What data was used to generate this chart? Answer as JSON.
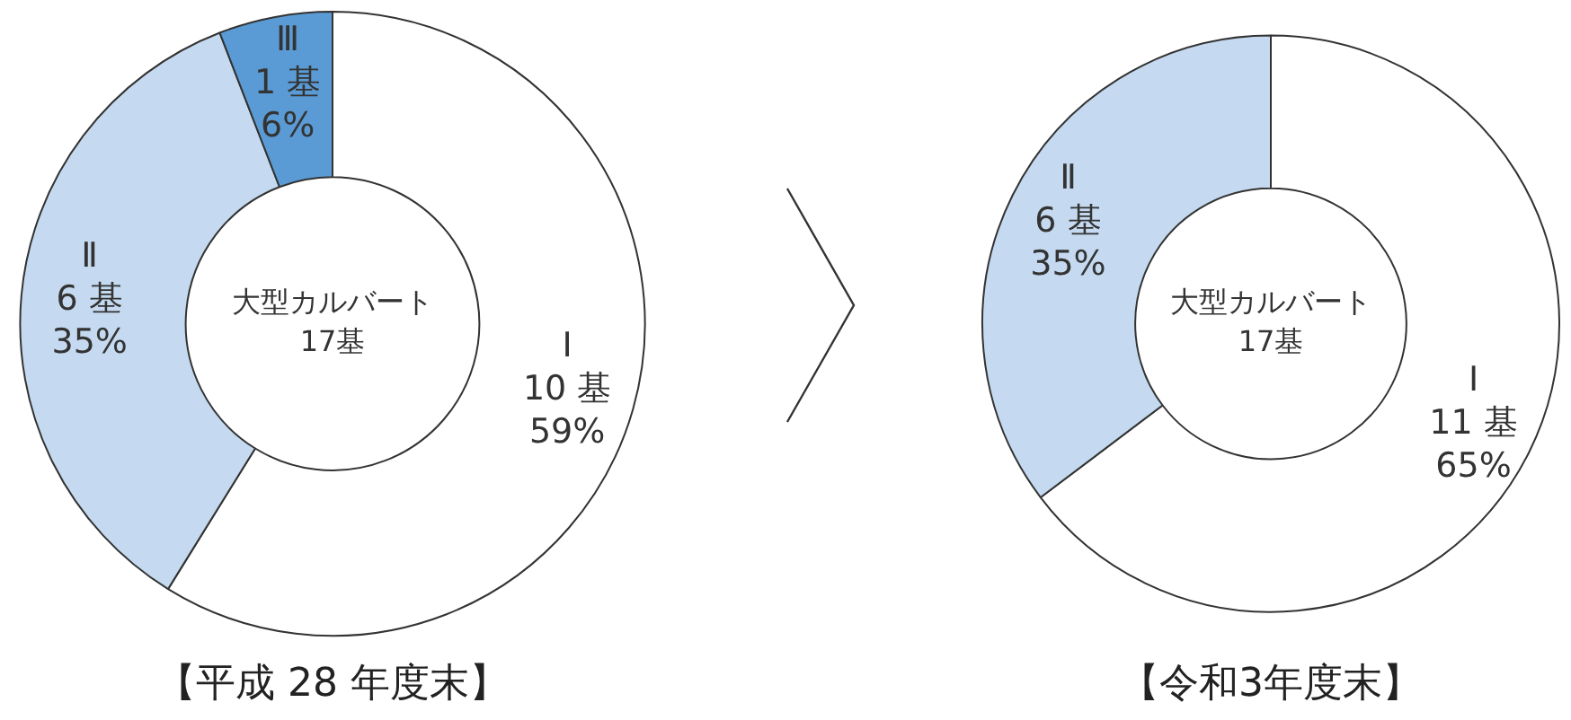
{
  "chart_data": [
    {
      "type": "donut",
      "title": "【平成 28 年度末】",
      "categories": [
        "Ⅰ",
        "Ⅱ",
        "Ⅲ"
      ],
      "values": [
        10,
        6,
        1
      ],
      "colors": [
        "#ffffff",
        "#c5daf0",
        "#5b9bd5"
      ],
      "value_labels": [
        "10 基\n59%",
        "6 基\n35%",
        "1 基\n6%"
      ],
      "annotations": [
        "大型カルバート\n17基"
      ],
      "legend": false
    },
    {
      "type": "donut",
      "title": "【令和3年度末】",
      "categories": [
        "Ⅰ",
        "Ⅱ"
      ],
      "values": [
        11,
        6
      ],
      "colors": [
        "#ffffff",
        "#c5daf0"
      ],
      "value_labels": [
        "11 基\n65%",
        "6 基\n35%"
      ],
      "annotations": [
        "大型カルバート\n17基"
      ],
      "legend": false
    }
  ]
}
